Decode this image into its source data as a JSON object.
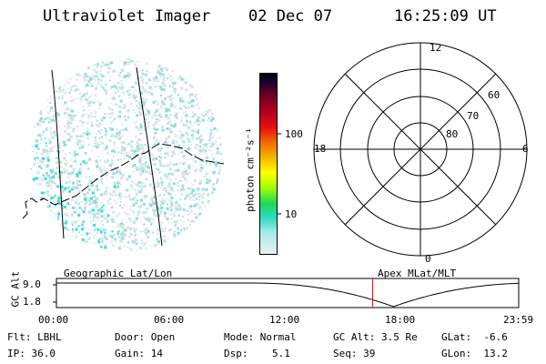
{
  "header": {
    "title": "Ultraviolet Imager",
    "date": "02 Dec 07",
    "time": "16:25:09 UT"
  },
  "colorbar": {
    "unit_label": "photon cm⁻²s⁻¹",
    "ticks": [
      "100",
      "10"
    ]
  },
  "polar_plot": {
    "mlt_labels": {
      "top": "12",
      "left": "18",
      "right": "6",
      "bottom": "0"
    },
    "lat_labels": [
      "60",
      "70",
      "80"
    ]
  },
  "panel_labels": {
    "left": "Geographic Lat/Lon",
    "right": "Apex MLat/MLT"
  },
  "altitude_plot": {
    "ylabel": "GC Alt",
    "yticks": [
      "9.0",
      "1.8"
    ],
    "xticks": [
      "00:00",
      "06:00",
      "12:00",
      "18:00",
      "23:59"
    ],
    "marker_time_hours": 16.42
  },
  "info": {
    "row1": [
      {
        "label": "Flt:",
        "value": "LBHL"
      },
      {
        "label": "Door:",
        "value": "Open"
      },
      {
        "label": "Mode:",
        "value": "Normal"
      },
      {
        "label": "GC Alt:",
        "value": "3.5 Re"
      },
      {
        "label": "GLat:",
        "value": "-6.6"
      }
    ],
    "row2": [
      {
        "label": "IP:",
        "value": "36.0"
      },
      {
        "label": "Gain:",
        "value": "14"
      },
      {
        "label": "Dsp:",
        "value": "5.1"
      },
      {
        "label": "Seq:",
        "value": "39"
      },
      {
        "label": "GLon:",
        "value": "13.2"
      }
    ]
  },
  "colors": {
    "marker": "#ff0000",
    "speckle_light": "#dfe8ea",
    "speckle_cyan": "#33dbe0"
  }
}
